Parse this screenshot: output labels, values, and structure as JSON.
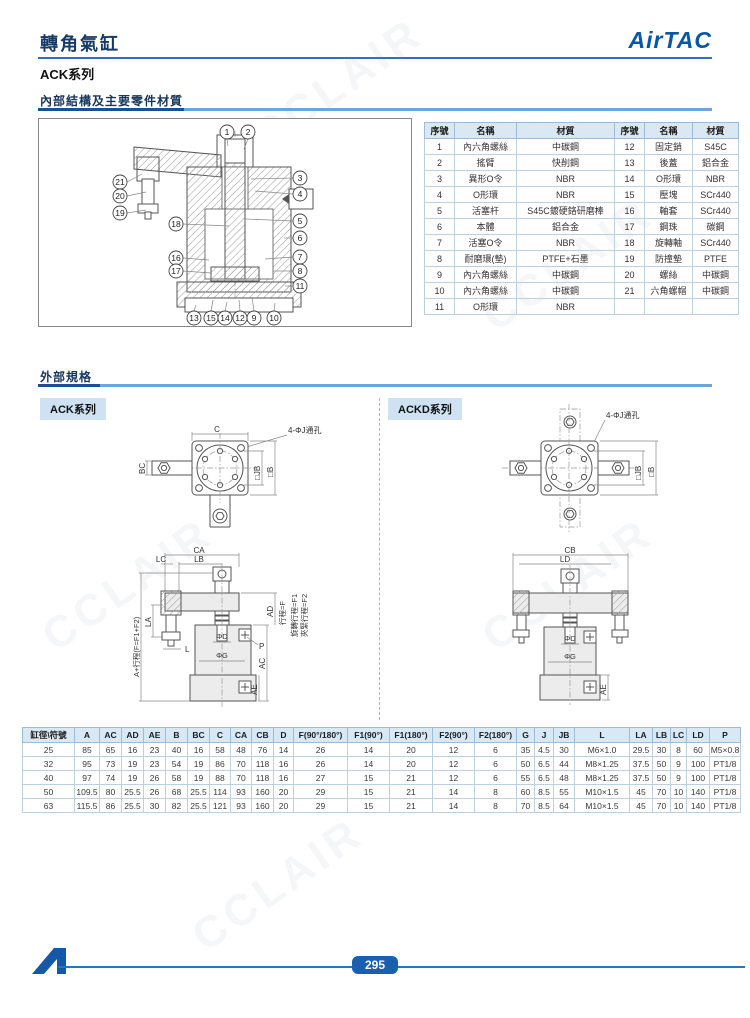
{
  "page": {
    "title": "轉角氣缸",
    "series": "ACK系列",
    "logo": "AirTAC",
    "page_number": "295",
    "watermark": "CCLAIR"
  },
  "sections": {
    "internal_heading": "內部結構及主要零件材質",
    "external_heading": "外部規格",
    "ack_label": "ACK系列",
    "ackd_label": "ACKD系列"
  },
  "parts_table": {
    "headers": [
      "序號",
      "名稱",
      "材質",
      "序號",
      "名稱",
      "材質"
    ],
    "rows": [
      [
        "1",
        "內六角螺絲",
        "中碳鋼",
        "12",
        "固定銷",
        "S45C"
      ],
      [
        "2",
        "搖臂",
        "快削鋼",
        "13",
        "後蓋",
        "鋁合金"
      ],
      [
        "3",
        "異形O令",
        "NBR",
        "14",
        "O形環",
        "NBR"
      ],
      [
        "4",
        "O形環",
        "NBR",
        "15",
        "壓塊",
        "SCr440"
      ],
      [
        "5",
        "活塞杆",
        "S45C鍍硬鉻研磨棒",
        "16",
        "軸套",
        "SCr440"
      ],
      [
        "6",
        "本體",
        "鋁合金",
        "17",
        "鋼珠",
        "碳鋼"
      ],
      [
        "7",
        "活塞O令",
        "NBR",
        "18",
        "旋轉軸",
        "SCr440"
      ],
      [
        "8",
        "耐磨環(墊)",
        "PTFE+石墨",
        "19",
        "防撞墊",
        "PTFE"
      ],
      [
        "9",
        "內六角螺絲",
        "中碳鋼",
        "20",
        "螺絲",
        "中碳鋼"
      ],
      [
        "10",
        "內六角螺絲",
        "中碳鋼",
        "21",
        "六角螺帽",
        "中碳鋼"
      ],
      [
        "11",
        "O形環",
        "NBR",
        "",
        "",
        ""
      ]
    ]
  },
  "internal_diagram": {
    "balloons": [
      "1",
      "2",
      "3",
      "4",
      "5",
      "6",
      "7",
      "8",
      "9",
      "10",
      "11",
      "12",
      "13",
      "14",
      "15",
      "16",
      "17",
      "18",
      "19",
      "20",
      "21"
    ]
  },
  "ack_diagram": {
    "top": {
      "c": "C",
      "hole": "4-ΦJ通孔",
      "bc": "BC",
      "jb": "□JB",
      "b": "□B"
    },
    "front": {
      "ca": "CA",
      "lc": "LC",
      "lb": "LB",
      "la": "LA",
      "a": "A+行程(F=F1+F2)",
      "l": "L",
      "d": "ΦD",
      "g": "ΦG",
      "p": "P",
      "ac": "AC",
      "ae": "AE",
      "ad": "AD",
      "f": "行程=F",
      "f1": "旋轉行程=F1",
      "f2": "夾緊行程=F2"
    }
  },
  "ackd_diagram": {
    "top": {
      "hole": "4-ΦJ通孔",
      "jb": "□JB",
      "b": "□B"
    },
    "front": {
      "cb": "CB",
      "ld": "LD",
      "d": "ΦD",
      "g": "ΦG",
      "ae": "AE"
    }
  },
  "spec_table": {
    "headers": [
      "缸徑\\符號",
      "A",
      "AC",
      "AD",
      "AE",
      "B",
      "BC",
      "C",
      "CA",
      "CB",
      "D",
      "F(90°/180°)",
      "F1(90°)",
      "F1(180°)",
      "F2(90°)",
      "F2(180°)",
      "G",
      "J",
      "JB",
      "L",
      "LA",
      "LB",
      "LC",
      "LD",
      "P"
    ],
    "rows": [
      [
        "25",
        "85",
        "65",
        "16",
        "23",
        "40",
        "16",
        "58",
        "48",
        "76",
        "14",
        "26",
        "14",
        "20",
        "12",
        "6",
        "35",
        "4.5",
        "30",
        "M6×1.0",
        "29.5",
        "30",
        "8",
        "60",
        "M5×0.8"
      ],
      [
        "32",
        "95",
        "73",
        "19",
        "23",
        "54",
        "19",
        "86",
        "70",
        "118",
        "16",
        "26",
        "14",
        "20",
        "12",
        "6",
        "50",
        "6.5",
        "44",
        "M8×1.25",
        "37.5",
        "50",
        "9",
        "100",
        "PT1/8"
      ],
      [
        "40",
        "97",
        "74",
        "19",
        "26",
        "58",
        "19",
        "88",
        "70",
        "118",
        "16",
        "27",
        "15",
        "21",
        "12",
        "6",
        "55",
        "6.5",
        "48",
        "M8×1.25",
        "37.5",
        "50",
        "9",
        "100",
        "PT1/8"
      ],
      [
        "50",
        "109.5",
        "80",
        "25.5",
        "26",
        "68",
        "25.5",
        "114",
        "93",
        "160",
        "20",
        "29",
        "15",
        "21",
        "14",
        "8",
        "60",
        "8.5",
        "55",
        "M10×1.5",
        "45",
        "70",
        "10",
        "140",
        "PT1/8"
      ],
      [
        "63",
        "115.5",
        "86",
        "25.5",
        "30",
        "82",
        "25.5",
        "121",
        "93",
        "160",
        "20",
        "29",
        "15",
        "21",
        "14",
        "8",
        "70",
        "8.5",
        "64",
        "M10×1.5",
        "45",
        "70",
        "10",
        "140",
        "PT1/8"
      ]
    ]
  }
}
